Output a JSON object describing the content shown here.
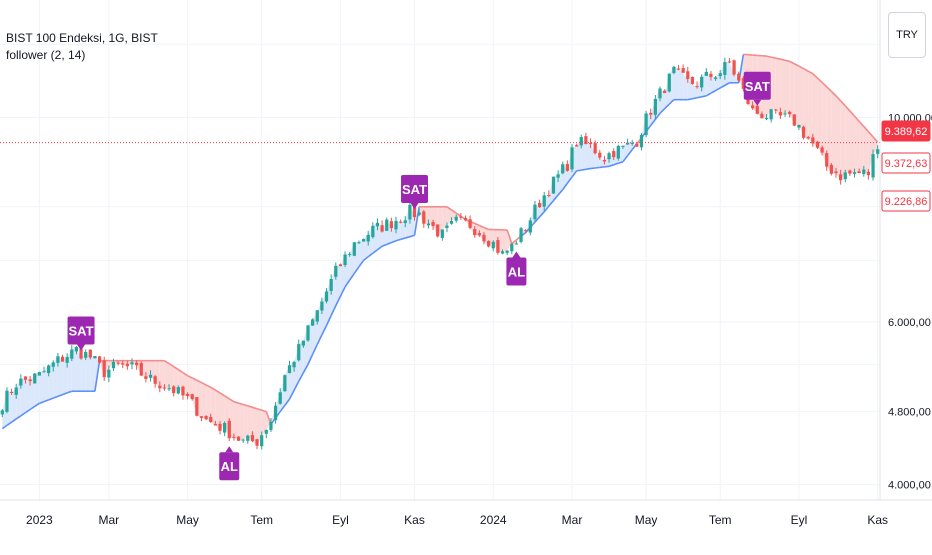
{
  "legend": {
    "symbol": "BIST 100 Endeksi, 1G, BIST",
    "indicator": "follower (2, 14)"
  },
  "currency_button": "TRY",
  "colors": {
    "up": "#26a69a",
    "down": "#ef5350",
    "trail_up": "#5b8ff9",
    "trail_down": "#f28b8b",
    "fill_up": "#dbe7fb",
    "fill_down": "#fbd9d9",
    "signal": "#9c27b0",
    "price_line": "#f23645",
    "grid": "#f0f3fa",
    "axis_text": "#131722"
  },
  "chart_data": {
    "type": "candlestick",
    "x_tick_labels": [
      "2023",
      "Mar",
      "May",
      "Tem",
      "Eyl",
      "Kas",
      "2024",
      "Mar",
      "May",
      "Tem",
      "Eyl",
      "Kas"
    ],
    "y_scale": "log",
    "y_tick_labels": [
      "10.000,00",
      "6.000,00",
      "4.800,00",
      "4.000,00"
    ],
    "y_ticks": [
      10000,
      6000,
      4800,
      4000
    ],
    "ylim": [
      3850,
      13400
    ],
    "price_labels": [
      {
        "text": "9.389,62",
        "value": 9389.62,
        "style": "filled"
      },
      {
        "text": "9.372,63",
        "value": 9372.63,
        "style": "outline"
      },
      {
        "text": "9.226,86",
        "value": 9226.86,
        "style": "outline"
      }
    ],
    "last_price": 9389.62,
    "close_keypoints": [
      [
        0,
        4900
      ],
      [
        3,
        5150
      ],
      [
        8,
        5250
      ],
      [
        12,
        5450
      ],
      [
        16,
        5600
      ],
      [
        19,
        5500
      ],
      [
        22,
        5300
      ],
      [
        25,
        5380
      ],
      [
        28,
        5350
      ],
      [
        32,
        5200
      ],
      [
        36,
        5100
      ],
      [
        40,
        4950
      ],
      [
        44,
        4700
      ],
      [
        48,
        4600
      ],
      [
        52,
        4450
      ],
      [
        55,
        4460
      ],
      [
        58,
        4700
      ],
      [
        61,
        5250
      ],
      [
        64,
        5600
      ],
      [
        68,
        6150
      ],
      [
        72,
        6800
      ],
      [
        76,
        7300
      ],
      [
        80,
        7550
      ],
      [
        84,
        7700
      ],
      [
        88,
        7900
      ],
      [
        90,
        7850
      ],
      [
        93,
        7600
      ],
      [
        95,
        7450
      ],
      [
        98,
        7700
      ],
      [
        101,
        7650
      ],
      [
        104,
        7450
      ],
      [
        106,
        7300
      ],
      [
        108,
        7100
      ],
      [
        110,
        7250
      ],
      [
        113,
        7600
      ],
      [
        116,
        8100
      ],
      [
        119,
        8500
      ],
      [
        122,
        8900
      ],
      [
        124,
        9400
      ],
      [
        127,
        9300
      ],
      [
        130,
        9050
      ],
      [
        132,
        9200
      ],
      [
        134,
        9250
      ],
      [
        137,
        9450
      ],
      [
        140,
        10200
      ],
      [
        143,
        10800
      ],
      [
        145,
        11200
      ],
      [
        148,
        10900
      ],
      [
        150,
        10900
      ],
      [
        152,
        11050
      ],
      [
        155,
        11200
      ],
      [
        157,
        11450
      ],
      [
        160,
        10650
      ],
      [
        162,
        10150
      ],
      [
        165,
        10050
      ],
      [
        168,
        10000
      ],
      [
        171,
        9900
      ],
      [
        175,
        9350
      ],
      [
        178,
        8850
      ],
      [
        181,
        8650
      ],
      [
        184,
        8700
      ],
      [
        187,
        8700
      ],
      [
        189,
        9390
      ]
    ],
    "trail_keypoints": [
      [
        0,
        4600
      ],
      [
        8,
        4900
      ],
      [
        15,
        5050
      ],
      [
        20,
        5050
      ],
      [
        21,
        5450
      ],
      [
        35,
        5450
      ],
      [
        40,
        5250
      ],
      [
        45,
        5100
      ],
      [
        50,
        4920
      ],
      [
        57,
        4800
      ],
      [
        58,
        4650
      ],
      [
        62,
        4950
      ],
      [
        66,
        5400
      ],
      [
        70,
        5950
      ],
      [
        74,
        6550
      ],
      [
        78,
        7000
      ],
      [
        82,
        7250
      ],
      [
        85,
        7350
      ],
      [
        89,
        7450
      ],
      [
        90,
        8000
      ],
      [
        96,
        8000
      ],
      [
        100,
        7750
      ],
      [
        105,
        7560
      ],
      [
        109,
        7550
      ],
      [
        110,
        7300
      ],
      [
        113,
        7500
      ],
      [
        117,
        7900
      ],
      [
        121,
        8350
      ],
      [
        124,
        8750
      ],
      [
        127,
        8800
      ],
      [
        131,
        8850
      ],
      [
        134,
        8950
      ],
      [
        138,
        9500
      ],
      [
        142,
        10100
      ],
      [
        145,
        10450
      ],
      [
        148,
        10450
      ],
      [
        152,
        10550
      ],
      [
        157,
        10900
      ],
      [
        159,
        10900
      ],
      [
        160,
        11700
      ],
      [
        165,
        11650
      ],
      [
        170,
        11500
      ],
      [
        175,
        11150
      ],
      [
        180,
        10550
      ],
      [
        185,
        9900
      ],
      [
        189,
        9400
      ]
    ],
    "signals": [
      {
        "label": "SAT",
        "bar": 17,
        "position": "above"
      },
      {
        "label": "AL",
        "bar": 49,
        "position": "below"
      },
      {
        "label": "SAT",
        "bar": 89,
        "position": "above"
      },
      {
        "label": "AL",
        "bar": 111,
        "position": "below"
      },
      {
        "label": "SAT",
        "bar": 163,
        "position": "above"
      }
    ],
    "x_tick_bars": [
      8,
      23,
      40,
      56,
      73,
      89,
      106,
      123,
      139,
      155,
      172,
      189
    ]
  }
}
